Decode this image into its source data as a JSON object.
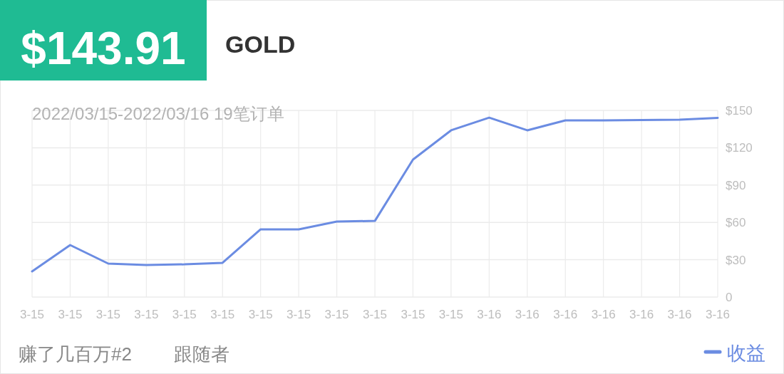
{
  "chart_data": {
    "type": "line",
    "title": "GOLD",
    "annotations": [
      "$143.91",
      "2022/03/15-2022/03/16 19笔订单",
      "赚了几百万#2",
      "跟随者"
    ],
    "categories": [
      "3-15",
      "3-15",
      "3-15",
      "3-15",
      "3-15",
      "3-15",
      "3-15",
      "3-15",
      "3-15",
      "3-15",
      "3-15",
      "3-15",
      "3-16",
      "3-16",
      "3-16",
      "3-16",
      "3-16",
      "3-16",
      "3-16"
    ],
    "series": [
      {
        "name": "收益",
        "color": "#6b8ce2",
        "values": [
          20.6,
          41.8,
          26.9,
          25.8,
          26.3,
          27.5,
          54.4,
          54.4,
          60.7,
          61.2,
          110.5,
          134,
          144.2,
          134,
          142,
          142,
          142.2,
          142.5,
          144
        ]
      }
    ],
    "ylim": [
      0,
      150
    ],
    "yticks": [
      0,
      {
        "value": 30,
        "label": "$30"
      },
      {
        "value": 60,
        "label": "$60"
      },
      {
        "value": 90,
        "label": "$90"
      },
      {
        "value": 120,
        "label": "$120"
      },
      {
        "value": 150,
        "label": "$150"
      }
    ],
    "grid": true,
    "legend": "bottom right",
    "marker": "none",
    "line_style": "solid"
  }
}
